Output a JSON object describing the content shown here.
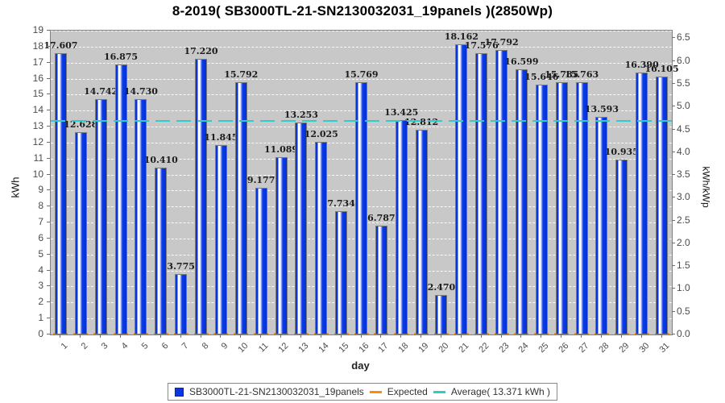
{
  "chart_data": {
    "type": "bar",
    "title": "8-2019( SB3000TL-21-SN2130032031_19panels )(2850Wp)",
    "xlabel": "day",
    "ylabel_left": "kWh",
    "ylabel_right": "kWh/kWp",
    "categories": [
      1,
      2,
      3,
      4,
      5,
      6,
      7,
      8,
      9,
      10,
      11,
      12,
      13,
      14,
      15,
      16,
      17,
      18,
      19,
      20,
      21,
      22,
      23,
      24,
      25,
      26,
      27,
      28,
      29,
      30,
      31
    ],
    "series": [
      {
        "name": "SB3000TL-21-SN2130032031_19panels",
        "values": [
          17.607,
          12.628,
          14.742,
          16.875,
          14.73,
          10.41,
          3.775,
          17.22,
          11.845,
          15.792,
          9.177,
          11.089,
          13.253,
          12.025,
          7.734,
          15.769,
          6.787,
          13.425,
          12.812,
          2.47,
          18.162,
          17.576,
          17.792,
          16.599,
          15.646,
          15.785,
          15.763,
          13.593,
          10.935,
          16.39,
          16.105
        ]
      },
      {
        "name": "Expected",
        "values_shown_as": "orange markers at baseline",
        "baseline_value": 0
      }
    ],
    "average": {
      "value": 13.371,
      "label": "Average( 13.371 kWh )"
    },
    "ylim_left": [
      0,
      19
    ],
    "yticks_left": [
      0,
      1,
      2,
      3,
      4,
      5,
      6,
      7,
      8,
      9,
      10,
      11,
      12,
      13,
      14,
      15,
      16,
      17,
      18,
      19
    ],
    "ylim_right": [
      0,
      6.5
    ],
    "yticks_right": [
      0.0,
      0.5,
      1.0,
      1.5,
      2.0,
      2.5,
      3.0,
      3.5,
      4.0,
      4.5,
      5.0,
      5.5,
      6.0,
      6.5
    ],
    "right_axis_kwh_per_unit": 2.85,
    "grid": true,
    "legend_position": "bottom"
  },
  "legend": {
    "series_label": "SB3000TL-21-SN2130032031_19panels",
    "expected_label": "Expected",
    "average_label": "Average( 13.371 kWh )"
  },
  "colors": {
    "bar_fill": "#0433DC",
    "bar_highlight": "#FFFFFF",
    "bar_border": "#7A7A7A",
    "plot_background": "#C8C8C8",
    "gridline": "#FFFFFF",
    "average_line": "#2FCCCC",
    "expected_marker": "#FF8C00",
    "tick_text": "#4C4C4C",
    "title_text": "#000000"
  }
}
